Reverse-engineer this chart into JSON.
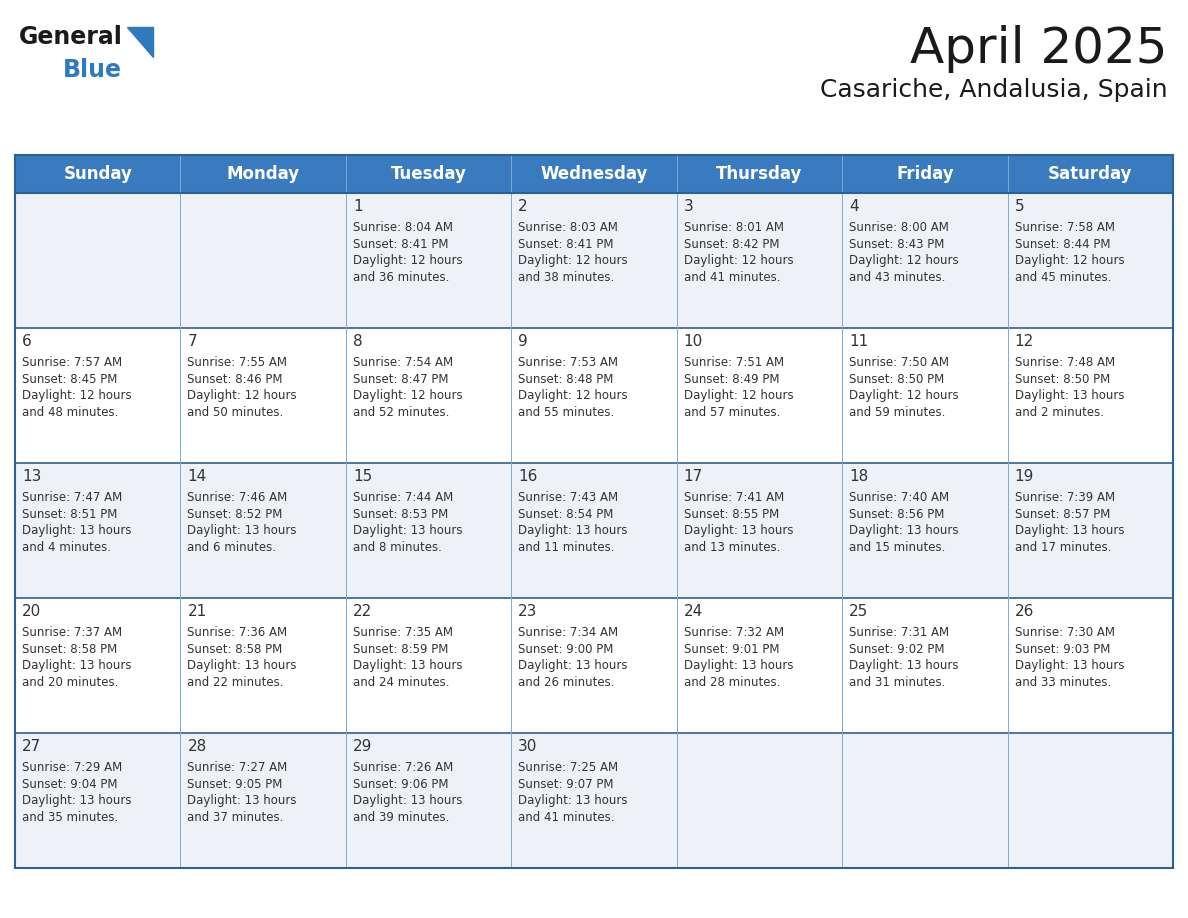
{
  "title": "April 2025",
  "subtitle": "Casariche, Andalusia, Spain",
  "header_color": "#3a7abf",
  "header_text_color": "#ffffff",
  "cell_bg_odd": "#eef2f7",
  "cell_bg_even": "#ffffff",
  "row_border_color": "#2e5f96",
  "col_border_color": "#7aadd4",
  "outer_border_color": "#2e5f96",
  "text_color": "#333333",
  "day_names": [
    "Sunday",
    "Monday",
    "Tuesday",
    "Wednesday",
    "Thursday",
    "Friday",
    "Saturday"
  ],
  "days_data": [
    {
      "day": 1,
      "col": 2,
      "row": 0,
      "sunrise": "8:04 AM",
      "sunset": "8:41 PM",
      "daylight_h": "12 hours",
      "daylight_m": "and 36 minutes."
    },
    {
      "day": 2,
      "col": 3,
      "row": 0,
      "sunrise": "8:03 AM",
      "sunset": "8:41 PM",
      "daylight_h": "12 hours",
      "daylight_m": "and 38 minutes."
    },
    {
      "day": 3,
      "col": 4,
      "row": 0,
      "sunrise": "8:01 AM",
      "sunset": "8:42 PM",
      "daylight_h": "12 hours",
      "daylight_m": "and 41 minutes."
    },
    {
      "day": 4,
      "col": 5,
      "row": 0,
      "sunrise": "8:00 AM",
      "sunset": "8:43 PM",
      "daylight_h": "12 hours",
      "daylight_m": "and 43 minutes."
    },
    {
      "day": 5,
      "col": 6,
      "row": 0,
      "sunrise": "7:58 AM",
      "sunset": "8:44 PM",
      "daylight_h": "12 hours",
      "daylight_m": "and 45 minutes."
    },
    {
      "day": 6,
      "col": 0,
      "row": 1,
      "sunrise": "7:57 AM",
      "sunset": "8:45 PM",
      "daylight_h": "12 hours",
      "daylight_m": "and 48 minutes."
    },
    {
      "day": 7,
      "col": 1,
      "row": 1,
      "sunrise": "7:55 AM",
      "sunset": "8:46 PM",
      "daylight_h": "12 hours",
      "daylight_m": "and 50 minutes."
    },
    {
      "day": 8,
      "col": 2,
      "row": 1,
      "sunrise": "7:54 AM",
      "sunset": "8:47 PM",
      "daylight_h": "12 hours",
      "daylight_m": "and 52 minutes."
    },
    {
      "day": 9,
      "col": 3,
      "row": 1,
      "sunrise": "7:53 AM",
      "sunset": "8:48 PM",
      "daylight_h": "12 hours",
      "daylight_m": "and 55 minutes."
    },
    {
      "day": 10,
      "col": 4,
      "row": 1,
      "sunrise": "7:51 AM",
      "sunset": "8:49 PM",
      "daylight_h": "12 hours",
      "daylight_m": "and 57 minutes."
    },
    {
      "day": 11,
      "col": 5,
      "row": 1,
      "sunrise": "7:50 AM",
      "sunset": "8:50 PM",
      "daylight_h": "12 hours",
      "daylight_m": "and 59 minutes."
    },
    {
      "day": 12,
      "col": 6,
      "row": 1,
      "sunrise": "7:48 AM",
      "sunset": "8:50 PM",
      "daylight_h": "13 hours",
      "daylight_m": "and 2 minutes."
    },
    {
      "day": 13,
      "col": 0,
      "row": 2,
      "sunrise": "7:47 AM",
      "sunset": "8:51 PM",
      "daylight_h": "13 hours",
      "daylight_m": "and 4 minutes."
    },
    {
      "day": 14,
      "col": 1,
      "row": 2,
      "sunrise": "7:46 AM",
      "sunset": "8:52 PM",
      "daylight_h": "13 hours",
      "daylight_m": "and 6 minutes."
    },
    {
      "day": 15,
      "col": 2,
      "row": 2,
      "sunrise": "7:44 AM",
      "sunset": "8:53 PM",
      "daylight_h": "13 hours",
      "daylight_m": "and 8 minutes."
    },
    {
      "day": 16,
      "col": 3,
      "row": 2,
      "sunrise": "7:43 AM",
      "sunset": "8:54 PM",
      "daylight_h": "13 hours",
      "daylight_m": "and 11 minutes."
    },
    {
      "day": 17,
      "col": 4,
      "row": 2,
      "sunrise": "7:41 AM",
      "sunset": "8:55 PM",
      "daylight_h": "13 hours",
      "daylight_m": "and 13 minutes."
    },
    {
      "day": 18,
      "col": 5,
      "row": 2,
      "sunrise": "7:40 AM",
      "sunset": "8:56 PM",
      "daylight_h": "13 hours",
      "daylight_m": "and 15 minutes."
    },
    {
      "day": 19,
      "col": 6,
      "row": 2,
      "sunrise": "7:39 AM",
      "sunset": "8:57 PM",
      "daylight_h": "13 hours",
      "daylight_m": "and 17 minutes."
    },
    {
      "day": 20,
      "col": 0,
      "row": 3,
      "sunrise": "7:37 AM",
      "sunset": "8:58 PM",
      "daylight_h": "13 hours",
      "daylight_m": "and 20 minutes."
    },
    {
      "day": 21,
      "col": 1,
      "row": 3,
      "sunrise": "7:36 AM",
      "sunset": "8:58 PM",
      "daylight_h": "13 hours",
      "daylight_m": "and 22 minutes."
    },
    {
      "day": 22,
      "col": 2,
      "row": 3,
      "sunrise": "7:35 AM",
      "sunset": "8:59 PM",
      "daylight_h": "13 hours",
      "daylight_m": "and 24 minutes."
    },
    {
      "day": 23,
      "col": 3,
      "row": 3,
      "sunrise": "7:34 AM",
      "sunset": "9:00 PM",
      "daylight_h": "13 hours",
      "daylight_m": "and 26 minutes."
    },
    {
      "day": 24,
      "col": 4,
      "row": 3,
      "sunrise": "7:32 AM",
      "sunset": "9:01 PM",
      "daylight_h": "13 hours",
      "daylight_m": "and 28 minutes."
    },
    {
      "day": 25,
      "col": 5,
      "row": 3,
      "sunrise": "7:31 AM",
      "sunset": "9:02 PM",
      "daylight_h": "13 hours",
      "daylight_m": "and 31 minutes."
    },
    {
      "day": 26,
      "col": 6,
      "row": 3,
      "sunrise": "7:30 AM",
      "sunset": "9:03 PM",
      "daylight_h": "13 hours",
      "daylight_m": "and 33 minutes."
    },
    {
      "day": 27,
      "col": 0,
      "row": 4,
      "sunrise": "7:29 AM",
      "sunset": "9:04 PM",
      "daylight_h": "13 hours",
      "daylight_m": "and 35 minutes."
    },
    {
      "day": 28,
      "col": 1,
      "row": 4,
      "sunrise": "7:27 AM",
      "sunset": "9:05 PM",
      "daylight_h": "13 hours",
      "daylight_m": "and 37 minutes."
    },
    {
      "day": 29,
      "col": 2,
      "row": 4,
      "sunrise": "7:26 AM",
      "sunset": "9:06 PM",
      "daylight_h": "13 hours",
      "daylight_m": "and 39 minutes."
    },
    {
      "day": 30,
      "col": 3,
      "row": 4,
      "sunrise": "7:25 AM",
      "sunset": "9:07 PM",
      "daylight_h": "13 hours",
      "daylight_m": "and 41 minutes."
    }
  ],
  "num_rows": 5,
  "num_cols": 7,
  "logo_text_general": "General",
  "logo_text_blue": "Blue",
  "logo_color_general": "#1a1a1a",
  "logo_color_blue": "#2e7abf",
  "logo_triangle_color": "#2e7abf",
  "title_fontsize": 36,
  "subtitle_fontsize": 18,
  "header_fontsize": 12,
  "day_num_fontsize": 11,
  "cell_text_fontsize": 8.5
}
